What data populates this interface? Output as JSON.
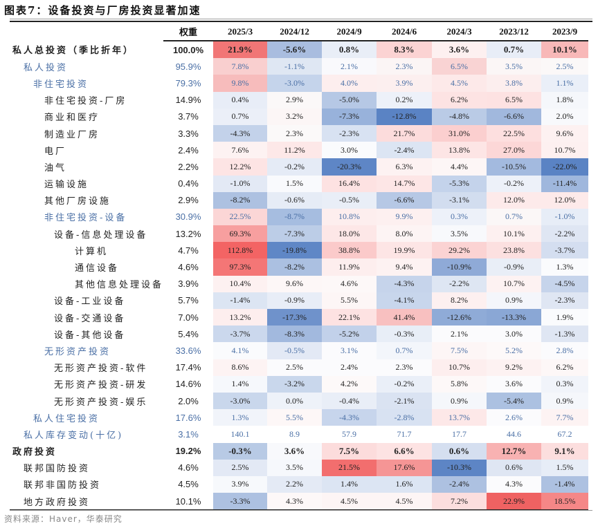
{
  "title": "图表7：设备投资与厂房投资显著加速",
  "source": "资料来源：Haver，华泰研究",
  "colors": {
    "accent_blue_text": "#4a6fa5",
    "strong_red": "#f26b6b",
    "strong_blue": "#4f7cc0"
  },
  "table": {
    "headers": [
      "",
      "权重",
      "2025/3",
      "2024/12",
      "2024/9",
      "2024/6",
      "2024/3",
      "2023/12",
      "2023/9"
    ],
    "rows": [
      {
        "label": "私人总投资（季比折年）",
        "indent": 0,
        "style": "bold",
        "weight": "100.0%",
        "values": [
          "21.9%",
          "-5.6%",
          "0.8%",
          "8.3%",
          "3.6%",
          "0.7%",
          "10.1%"
        ],
        "bg": [
          "#f17676",
          "#a9bddf",
          "#e9eef7",
          "#fbd3d3",
          "#fdf0f0",
          "#e8edf7",
          "#f8b8b8"
        ]
      },
      {
        "label": "私人投资",
        "indent": 1,
        "style": "blue",
        "weight": "95.9%",
        "values": [
          "7.8%",
          "-1.1%",
          "2.1%",
          "2.3%",
          "6.5%",
          "3.5%",
          "2.5%"
        ],
        "bg": [
          "#f9cfcf",
          "#dfe7f3",
          "#f9f9fc",
          "#fbf5f5",
          "#f9d3d3",
          "#fbf6f6",
          "#fbf8f8"
        ]
      },
      {
        "label": "非住宅投资",
        "indent": 2,
        "style": "blue",
        "weight": "79.3%",
        "values": [
          "9.8%",
          "-3.0%",
          "4.0%",
          "3.9%",
          "4.5%",
          "3.8%",
          "1.1%"
        ],
        "bg": [
          "#f7bcbc",
          "#c5d4eb",
          "#fdeeee",
          "#fcefef",
          "#fde9e9",
          "#fceeee",
          "#eaeff8"
        ]
      },
      {
        "label": "非住宅投资-厂房",
        "indent": 3,
        "style": "normal",
        "weight": "14.9%",
        "values": [
          "0.4%",
          "2.9%",
          "-5.0%",
          "0.2%",
          "6.2%",
          "6.5%",
          "1.8%"
        ],
        "bg": [
          "#e8edf7",
          "#fbf8f8",
          "#b6c8e5",
          "#edf1f9",
          "#fde3e3",
          "#fde2e2",
          "#f5f7fb"
        ]
      },
      {
        "label": "商业和医疗",
        "indent": 3,
        "style": "normal",
        "weight": "3.7%",
        "values": [
          "0.7%",
          "3.2%",
          "-7.3%",
          "-12.8%",
          "-4.8%",
          "-6.6%",
          "2.0%"
        ],
        "bg": [
          "#ebeff8",
          "#fcf6f6",
          "#98b2db",
          "#5a83c4",
          "#bacbe6",
          "#a1b8dd",
          "#f8f9fc"
        ]
      },
      {
        "label": "制造业厂房",
        "indent": 3,
        "style": "normal",
        "weight": "3.3%",
        "values": [
          "-4.3%",
          "2.3%",
          "-2.3%",
          "21.7%",
          "31.0%",
          "22.5%",
          "9.6%"
        ],
        "bg": [
          "#c3d2ea",
          "#fbf9f9",
          "#d8e2f2",
          "#fcdcdc",
          "#fbcfcf",
          "#fddfdf",
          "#fdf1f1"
        ]
      },
      {
        "label": "电厂",
        "indent": 3,
        "style": "normal",
        "weight": "2.4%",
        "values": [
          "7.6%",
          "11.2%",
          "3.0%",
          "-2.4%",
          "13.8%",
          "27.0%",
          "10.7%"
        ],
        "bg": [
          "#fdf2f2",
          "#fde8e8",
          "#fafbfd",
          "#dce5f3",
          "#fde5e5",
          "#fcd7d7",
          "#fdf0f0"
        ]
      },
      {
        "label": "油气",
        "indent": 3,
        "style": "normal",
        "weight": "2.2%",
        "values": [
          "12.2%",
          "-0.2%",
          "-20.3%",
          "6.3%",
          "4.4%",
          "-10.5%",
          "-22.0%"
        ],
        "bg": [
          "#fde4e4",
          "#e5ebf6",
          "#5e86c6",
          "#fdf2f2",
          "#fdf6f6",
          "#a3badf",
          "#5a83c4"
        ]
      },
      {
        "label": "运输设施",
        "indent": 3,
        "style": "normal",
        "weight": "0.4%",
        "values": [
          "-1.0%",
          "1.5%",
          "16.4%",
          "14.7%",
          "-5.3%",
          "-0.2%",
          "-11.4%"
        ],
        "bg": [
          "#e3e9f5",
          "#f9fafd",
          "#fde2e2",
          "#fde6e6",
          "#c4d3eb",
          "#edf1f9",
          "#9fb7dd"
        ]
      },
      {
        "label": "其他厂房设施",
        "indent": 3,
        "style": "normal",
        "weight": "2.9%",
        "values": [
          "-8.2%",
          "-0.6%",
          "-0.5%",
          "-6.6%",
          "-3.1%",
          "12.0%",
          "12.0%"
        ],
        "bg": [
          "#adc1e1",
          "#e6ecf6",
          "#e9eef7",
          "#b6c8e5",
          "#d2ddef",
          "#fdeaea",
          "#fdeaea"
        ]
      },
      {
        "label": "非住宅投资-设备",
        "indent": 3,
        "style": "blue",
        "weight": "30.9%",
        "values": [
          "22.5%",
          "-8.7%",
          "10.8%",
          "9.9%",
          "0.3%",
          "0.7%",
          "-1.0%"
        ],
        "bg": [
          "#fbd6d6",
          "#a6bde0",
          "#fdeeee",
          "#fdf0f0",
          "#edf1f9",
          "#fbf7f7",
          "#e7edf7"
        ]
      },
      {
        "label": "设备-信息处理设备",
        "indent": 4,
        "style": "normal",
        "weight": "13.2%",
        "values": [
          "69.3%",
          "-7.3%",
          "18.0%",
          "8.0%",
          "3.5%",
          "10.1%",
          "-2.2%"
        ],
        "bg": [
          "#f79f9f",
          "#bccde7",
          "#fde7e7",
          "#fdf4f4",
          "#f8f9fc",
          "#fdf0f0",
          "#dfe6f3"
        ]
      },
      {
        "label": "计算机",
        "indent": 5,
        "style": "normal",
        "weight": "4.7%",
        "values": [
          "112.8%",
          "-19.8%",
          "38.8%",
          "19.9%",
          "29.2%",
          "23.8%",
          "-3.7%"
        ],
        "bg": [
          "#f36464",
          "#5f87c6",
          "#fbcaca",
          "#fde5e5",
          "#fbd3d3",
          "#fce0e0",
          "#d4def0"
        ]
      },
      {
        "label": "通信设备",
        "indent": 5,
        "style": "normal",
        "weight": "4.6%",
        "values": [
          "97.3%",
          "-8.2%",
          "11.9%",
          "9.4%",
          "-10.9%",
          "-0.9%",
          "1.3%"
        ],
        "bg": [
          "#f47676",
          "#abc0e1",
          "#fdeeee",
          "#fdf2f2",
          "#8faad7",
          "#e9eef7",
          "#fafbfd"
        ]
      },
      {
        "label": "其他信息处理设备",
        "indent": 5,
        "style": "normal",
        "weight": "3.9%",
        "values": [
          "10.4%",
          "9.6%",
          "4.6%",
          "-4.3%",
          "-2.2%",
          "10.7%",
          "-4.5%"
        ],
        "bg": [
          "#fdf1f1",
          "#fdf7f7",
          "#fdf8f8",
          "#c6d4eb",
          "#dee6f3",
          "#fdf2f2",
          "#c6d4eb"
        ]
      },
      {
        "label": "设备-工业设备",
        "indent": 4,
        "style": "normal",
        "weight": "5.7%",
        "values": [
          "-1.4%",
          "-0.9%",
          "5.5%",
          "-4.1%",
          "8.2%",
          "0.9%",
          "-2.3%"
        ],
        "bg": [
          "#dce5f3",
          "#e8edf7",
          "#fdf6f6",
          "#c8d6ec",
          "#fdf0f0",
          "#f4f6fb",
          "#dfe6f3"
        ]
      },
      {
        "label": "设备-交通设备",
        "indent": 4,
        "style": "normal",
        "weight": "7.0%",
        "values": [
          "13.2%",
          "-17.3%",
          "22.1%",
          "41.4%",
          "-12.6%",
          "-13.3%",
          "1.9%"
        ],
        "bg": [
          "#fdeeee",
          "#6f92cb",
          "#fde2e2",
          "#f8c0c0",
          "#8fabd7",
          "#8aa7d5",
          "#fafbfd"
        ]
      },
      {
        "label": "设备-其他设备",
        "indent": 4,
        "style": "normal",
        "weight": "5.4%",
        "values": [
          "-3.7%",
          "-8.3%",
          "-5.2%",
          "-0.3%",
          "2.1%",
          "3.0%",
          "-1.3%"
        ],
        "bg": [
          "#cbd8ed",
          "#a2b9de",
          "#c2d1ea",
          "#e8eef7",
          "#fbfbfd",
          "#fbfbfd",
          "#dfe6f3"
        ]
      },
      {
        "label": "无形资产投资",
        "indent": 3,
        "style": "blue",
        "weight": "33.6%",
        "values": [
          "4.1%",
          "-0.5%",
          "3.1%",
          "0.7%",
          "7.5%",
          "5.2%",
          "2.8%"
        ],
        "bg": [
          "#fafbfd",
          "#e3e9f5",
          "#fbfbfd",
          "#f3f6fb",
          "#fdf6f6",
          "#fdf9f9",
          "#fbfbfd"
        ]
      },
      {
        "label": "无形资产投资-软件",
        "indent": 4,
        "style": "normal",
        "weight": "17.4%",
        "values": [
          "8.6%",
          "2.5%",
          "2.4%",
          "2.3%",
          "10.7%",
          "9.2%",
          "6.2%"
        ],
        "bg": [
          "#fdf3f3",
          "#fbfbfd",
          "#fbfbfd",
          "#fbfbfd",
          "#fdeeee",
          "#fdf2f2",
          "#fdf7f7"
        ]
      },
      {
        "label": "无形资产投资-研发",
        "indent": 4,
        "style": "normal",
        "weight": "14.6%",
        "values": [
          "1.4%",
          "-3.2%",
          "4.2%",
          "-0.2%",
          "5.8%",
          "3.6%",
          "0.3%"
        ],
        "bg": [
          "#f6f8fc",
          "#c9d7ec",
          "#fdf9f9",
          "#eaeff8",
          "#fdf8f8",
          "#fbfbfd",
          "#f1f4fa"
        ]
      },
      {
        "label": "无形资产投资-娱乐",
        "indent": 4,
        "style": "normal",
        "weight": "2.0%",
        "values": [
          "-3.0%",
          "0.0%",
          "-0.4%",
          "-2.1%",
          "0.9%",
          "-5.4%",
          "0.9%"
        ],
        "bg": [
          "#c9d7ec",
          "#eef2f9",
          "#e9eef7",
          "#dae3f2",
          "#f5f7fb",
          "#acc1e1",
          "#f5f7fb"
        ]
      },
      {
        "label": "私人住宅投资",
        "indent": 2,
        "style": "blue",
        "weight": "17.6%",
        "values": [
          "1.3%",
          "5.5%",
          "-4.3%",
          "-2.8%",
          "13.7%",
          "2.6%",
          "7.7%"
        ],
        "bg": [
          "#f1f4fa",
          "#fdf7f7",
          "#c7d5ec",
          "#d8e2f2",
          "#fde8e8",
          "#fbfbfd",
          "#fdf3f3"
        ]
      },
      {
        "label": "私人库存变动(十亿)",
        "indent": 1,
        "style": "blue",
        "weight": "3.1%",
        "values": [
          "140.1",
          "8.9",
          "57.9",
          "71.7",
          "17.7",
          "44.6",
          "67.2"
        ],
        "bg": [
          "#ffffff",
          "#ffffff",
          "#ffffff",
          "#ffffff",
          "#ffffff",
          "#ffffff",
          "#ffffff"
        ]
      },
      {
        "label": "政府投资",
        "indent": 0,
        "style": "bold",
        "weight": "19.2%",
        "values": [
          "-0.3%",
          "3.6%",
          "7.5%",
          "6.6%",
          "0.6%",
          "12.7%",
          "9.1%"
        ],
        "bg": [
          "#b8cae5",
          "#f8f9fc",
          "#fcdcdc",
          "#fde3e3",
          "#d5dff0",
          "#f8b2b2",
          "#fcdede"
        ]
      },
      {
        "label": "联邦国防投资",
        "indent": 1,
        "style": "normal",
        "weight": "4.6%",
        "values": [
          "2.5%",
          "3.5%",
          "21.5%",
          "17.6%",
          "-10.3%",
          "0.6%",
          "1.5%"
        ],
        "bg": [
          "#e3e9f5",
          "#f6f8fc",
          "#f26e6e",
          "#f59595",
          "#5d85c5",
          "#dfe6f3",
          "#e7edf7"
        ]
      },
      {
        "label": "联邦非国防投资",
        "indent": 1,
        "style": "normal",
        "weight": "4.5%",
        "values": [
          "3.9%",
          "2.2%",
          "1.4%",
          "1.6%",
          "-2.4%",
          "4.3%",
          "-1.4%"
        ],
        "bg": [
          "#f7f9fc",
          "#e4eaf5",
          "#dce5f3",
          "#dce5f3",
          "#adc1e1",
          "#fbfbfd",
          "#adc1e1"
        ]
      },
      {
        "label": "地方政府投资",
        "indent": 1,
        "style": "normal",
        "weight": "10.1%",
        "values": [
          "-3.3%",
          "4.3%",
          "4.5%",
          "4.5%",
          "7.2%",
          "22.9%",
          "18.5%"
        ],
        "bg": [
          "#adc1e1",
          "#fdf8f8",
          "#fdf5f5",
          "#fdf5f5",
          "#fcdede",
          "#ef6262",
          "#f58787"
        ]
      }
    ]
  }
}
